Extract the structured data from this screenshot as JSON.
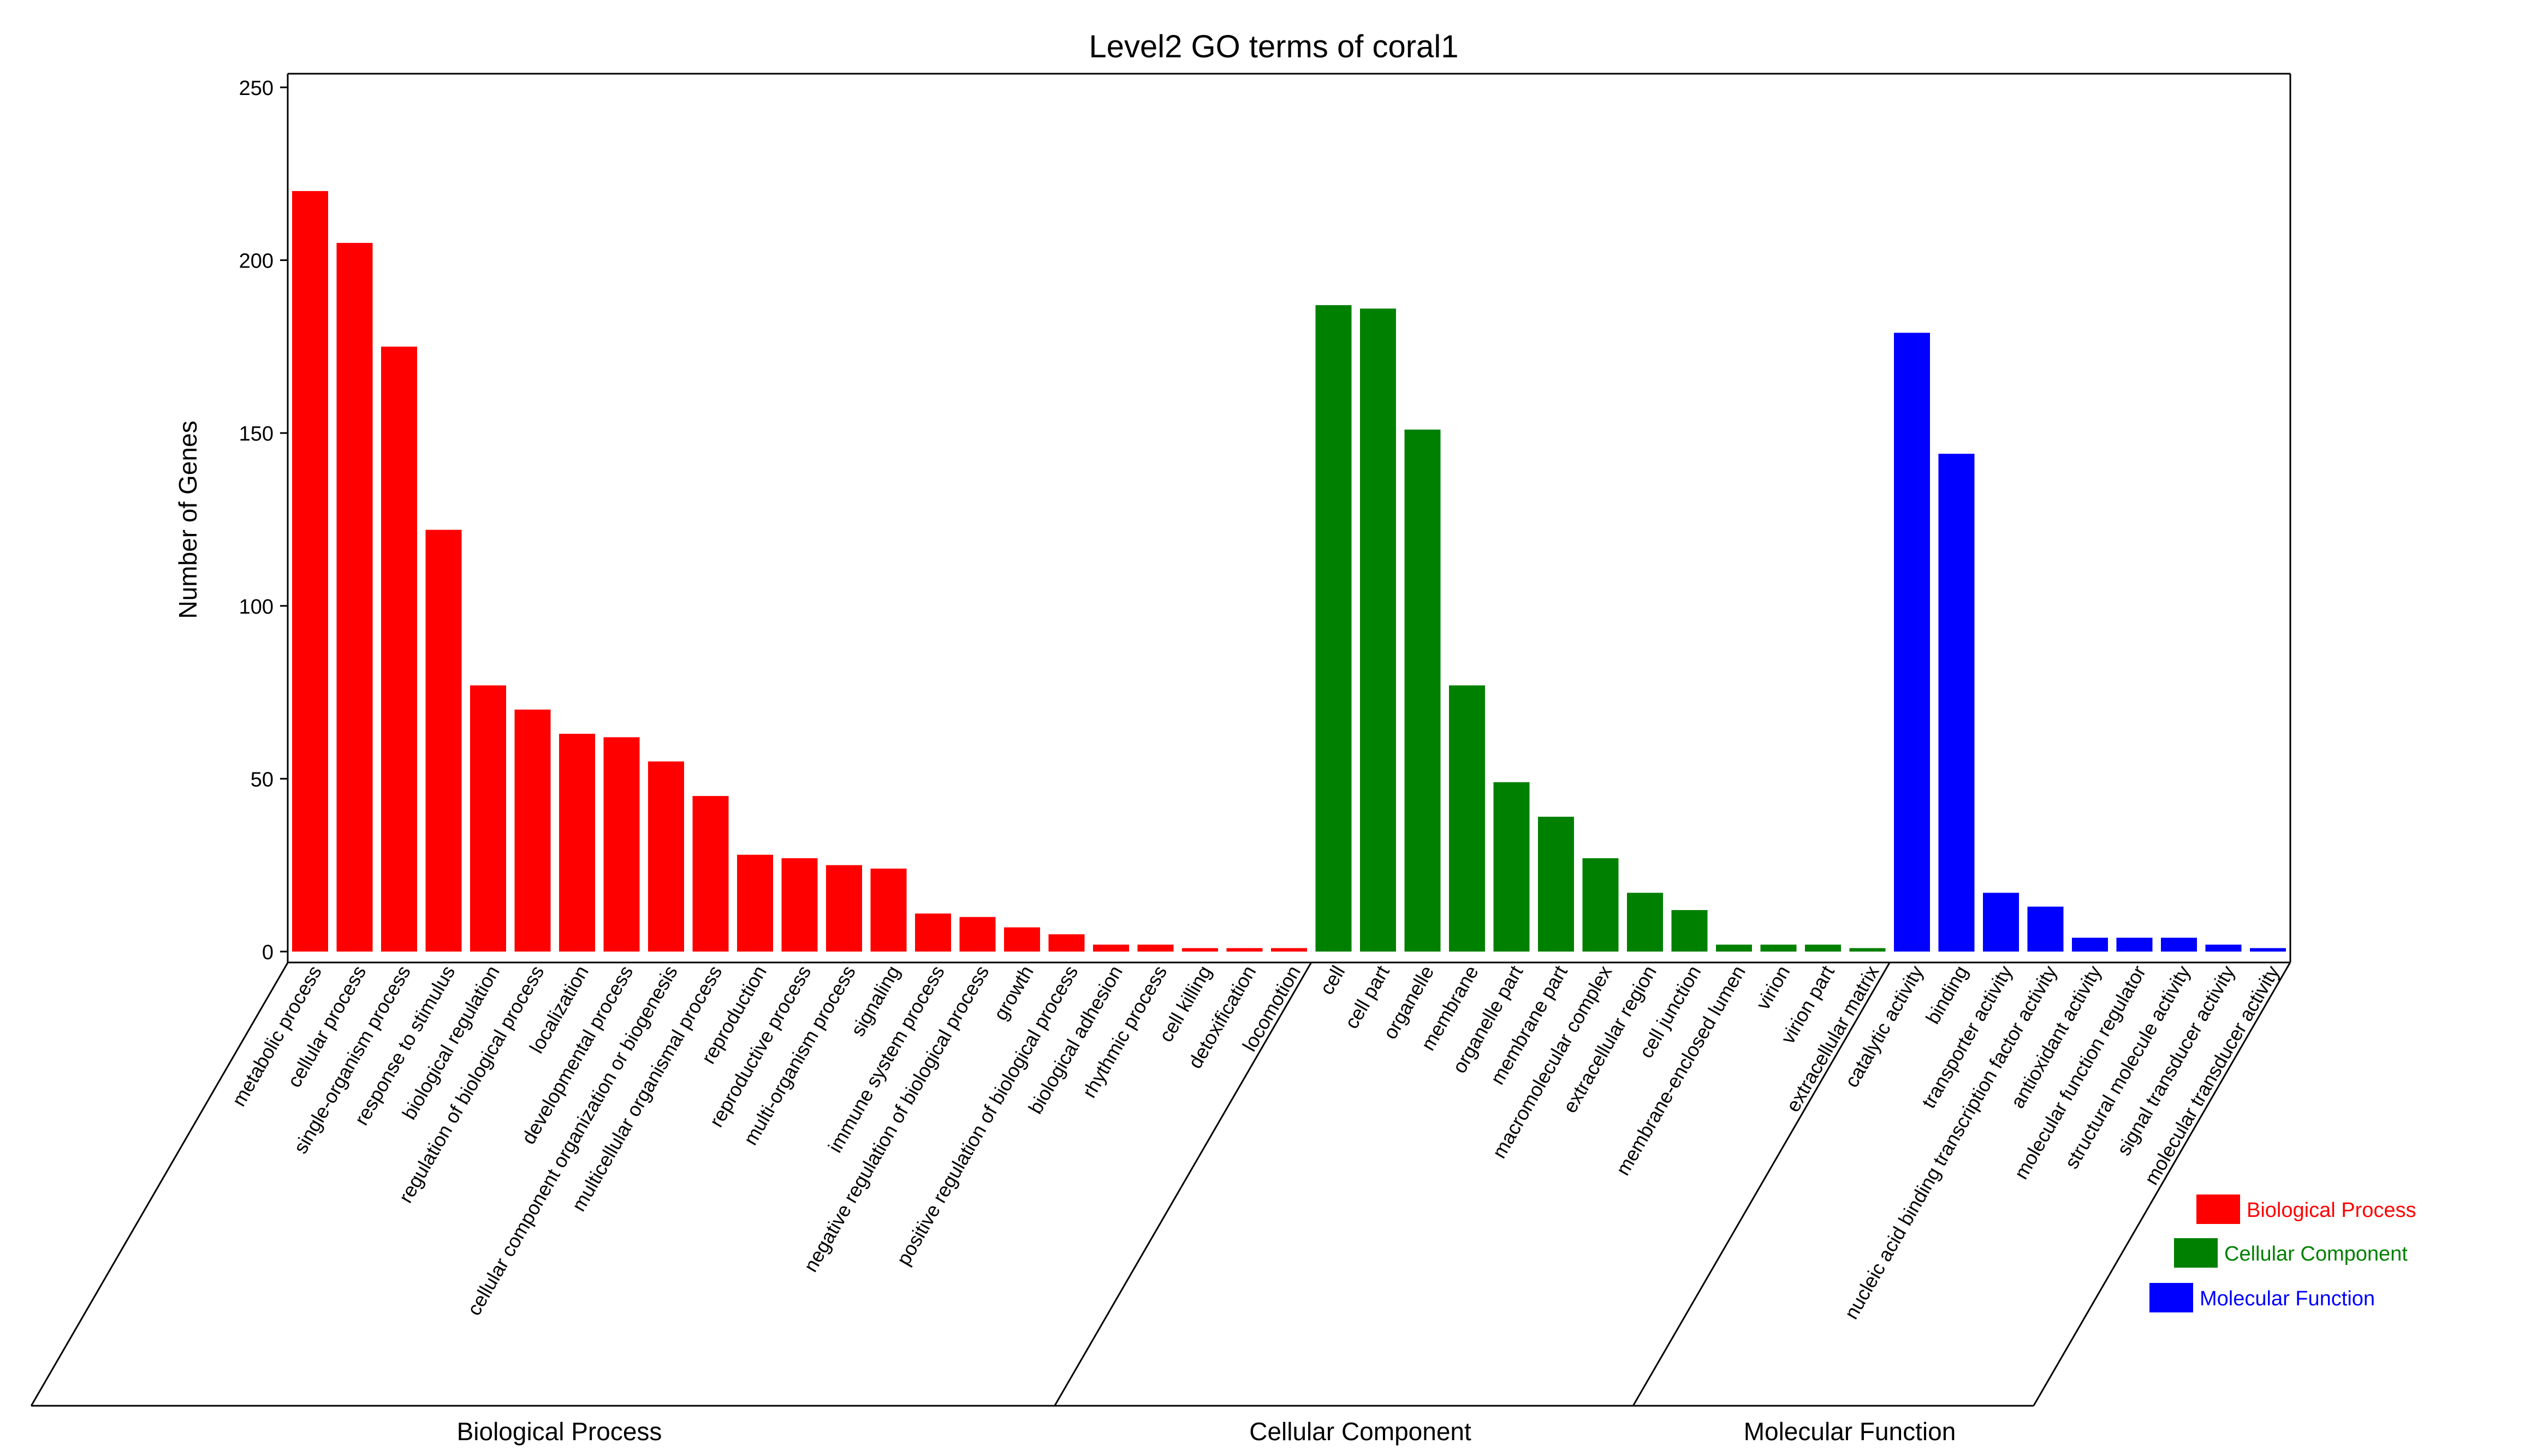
{
  "chart_data": {
    "type": "bar",
    "title": "Level2 GO terms of coral1",
    "ylabel": "Number of Genes",
    "ylim": [
      0,
      255
    ],
    "yticks": [
      0,
      50,
      100,
      150,
      200,
      250
    ],
    "grid": false,
    "legend_position": "bottom-right",
    "groups": [
      {
        "name": "Biological Process",
        "color": "#ff0000",
        "categories": [
          "metabolic process",
          "cellular process",
          "single-organism process",
          "response to stimulus",
          "biological regulation",
          "regulation of biological process",
          "localization",
          "developmental process",
          "cellular component organization or biogenesis",
          "multicellular organismal process",
          "reproduction",
          "reproductive process",
          "multi-organism process",
          "signaling",
          "immune system process",
          "negative regulation of biological process",
          "growth",
          "positive regulation of biological process",
          "biological adhesion",
          "rhythmic process",
          "cell killing",
          "detoxification",
          "locomotion"
        ],
        "values": [
          220,
          205,
          175,
          122,
          77,
          70,
          63,
          62,
          55,
          45,
          28,
          27,
          25,
          24,
          11,
          10,
          7,
          5,
          2,
          2,
          1,
          1,
          1
        ]
      },
      {
        "name": "Cellular Component",
        "color": "#008000",
        "categories": [
          "cell",
          "cell part",
          "organelle",
          "membrane",
          "organelle part",
          "membrane part",
          "macromolecular complex",
          "extracellular region",
          "cell junction",
          "membrane-enclosed lumen",
          "virion",
          "virion part",
          "extracellular matrix"
        ],
        "values": [
          187,
          186,
          151,
          77,
          49,
          39,
          27,
          17,
          12,
          2,
          2,
          2,
          1
        ]
      },
      {
        "name": "Molecular Function",
        "color": "#0000ff",
        "categories": [
          "catalytic activity",
          "binding",
          "transporter activity",
          "nucleic acid binding transcription factor activity",
          "antioxidant activity",
          "molecular function regulator",
          "structural molecule activity",
          "signal transducer activity",
          "molecular transducer activity"
        ],
        "values": [
          179,
          144,
          17,
          13,
          4,
          4,
          4,
          2,
          1
        ]
      }
    ],
    "legend": [
      {
        "label": "Biological Process",
        "color": "#ff0000"
      },
      {
        "label": "Cellular Component",
        "color": "#008000"
      },
      {
        "label": "Molecular Function",
        "color": "#0000ff"
      }
    ]
  }
}
